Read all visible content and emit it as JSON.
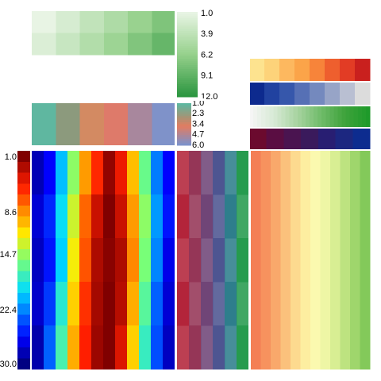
{
  "chart_data": {
    "type": "heatmap",
    "title": "",
    "panels": {
      "green_block": {
        "type": "heatmap",
        "rows": [
          [
            1.0,
            2.2,
            3.6,
            4.9,
            6.3,
            7.7
          ],
          [
            1.9,
            3.2,
            4.6,
            6.0,
            7.6,
            9.0
          ]
        ],
        "colorbar": {
          "ticks": [
            "1.0",
            "3.9",
            "6.2",
            "9.1",
            "12.0"
          ],
          "min": 1.0,
          "max": 12.0,
          "colormap": "greens"
        }
      },
      "category_strip": {
        "type": "heatmap",
        "values": [
          1.0,
          2.0,
          3.0,
          3.6,
          5.0,
          6.0
        ],
        "colors": [
          "#5fb7a0",
          "#8c9a7d",
          "#d38a62",
          "#de7a6a",
          "#a8879d",
          "#7f92c9"
        ],
        "colorbar": {
          "ticks": [
            "1.0",
            "2.3",
            "3.4",
            "4.7",
            "6.0"
          ],
          "min": 1.0,
          "max": 6.0
        }
      },
      "side_palettes": [
        {
          "name_hint": "warm",
          "colors": [
            "#fde38f",
            "#fdd37a",
            "#fdb85f",
            "#fba449",
            "#f7843a",
            "#ee5f2e",
            "#e23c25",
            "#c9201e"
          ]
        },
        {
          "name_hint": "blues",
          "colors": [
            "#0d2a8e",
            "#2142a0",
            "#3657ab",
            "#5670b5",
            "#7489be",
            "#97a4c7",
            "#b9bfd2",
            "#dcdcdc"
          ]
        },
        {
          "name_hint": "gradient-green",
          "colors": [
            "#f5f5f5",
            "#d6e9d4",
            "#a6d39f",
            "#6fbb69",
            "#3fa33c",
            "#1e9a2a"
          ]
        },
        {
          "name_hint": "purple-blue",
          "colors": [
            "#6b0a2e",
            "#5a0d42",
            "#4a1450",
            "#3a1a5c",
            "#281e72",
            "#1c2780",
            "#0d2c8f"
          ]
        }
      ],
      "jet_column": {
        "values": [
          1.0,
          2.5,
          4.0,
          5.4,
          6.9,
          8.6,
          10.0,
          11.6,
          13.1,
          14.7,
          16.2,
          17.8,
          19.3,
          20.9,
          22.4,
          24.0,
          25.5,
          27.1,
          28.6,
          30.0
        ],
        "ticks": [
          "1.0",
          "8.6",
          "14.7",
          "22.4",
          "30.0"
        ],
        "ylim": [
          1.0,
          30.0
        ],
        "colormap": "jet"
      },
      "jet_block": {
        "columns": 12,
        "rows": 5,
        "colormap": "jet",
        "values": [
          [
            0.05,
            0.12,
            0.32,
            0.52,
            0.72,
            0.85,
            0.98,
            0.88,
            0.68,
            0.48,
            0.25,
            0.12
          ],
          [
            0.08,
            0.16,
            0.36,
            0.58,
            0.78,
            0.92,
            1.0,
            0.92,
            0.72,
            0.52,
            0.28,
            0.14
          ],
          [
            0.06,
            0.14,
            0.34,
            0.62,
            0.8,
            0.95,
            0.99,
            0.95,
            0.74,
            0.5,
            0.26,
            0.1
          ],
          [
            0.07,
            0.18,
            0.4,
            0.66,
            0.84,
            0.96,
            1.0,
            0.94,
            0.7,
            0.46,
            0.22,
            0.08
          ],
          [
            0.04,
            0.22,
            0.44,
            0.7,
            0.86,
            0.97,
            1.0,
            0.9,
            0.66,
            0.42,
            0.2,
            0.06
          ]
        ]
      },
      "red_blue_green_block": {
        "columns": 6,
        "rows": 5,
        "colors": [
          "#b3243a",
          "#953657",
          "#704577",
          "#4d5591",
          "#2e7e8c",
          "#269b4e"
        ]
      },
      "spectral_block": {
        "columns": 12,
        "rows": 5,
        "colors": [
          "#f47f55",
          "#f7925e",
          "#f9a86b",
          "#fbc17c",
          "#fdda8f",
          "#fdeea0",
          "#fbf9af",
          "#eef6a5",
          "#d8ee93",
          "#bde380",
          "#9fd66c",
          "#83c95a"
        ]
      }
    }
  }
}
